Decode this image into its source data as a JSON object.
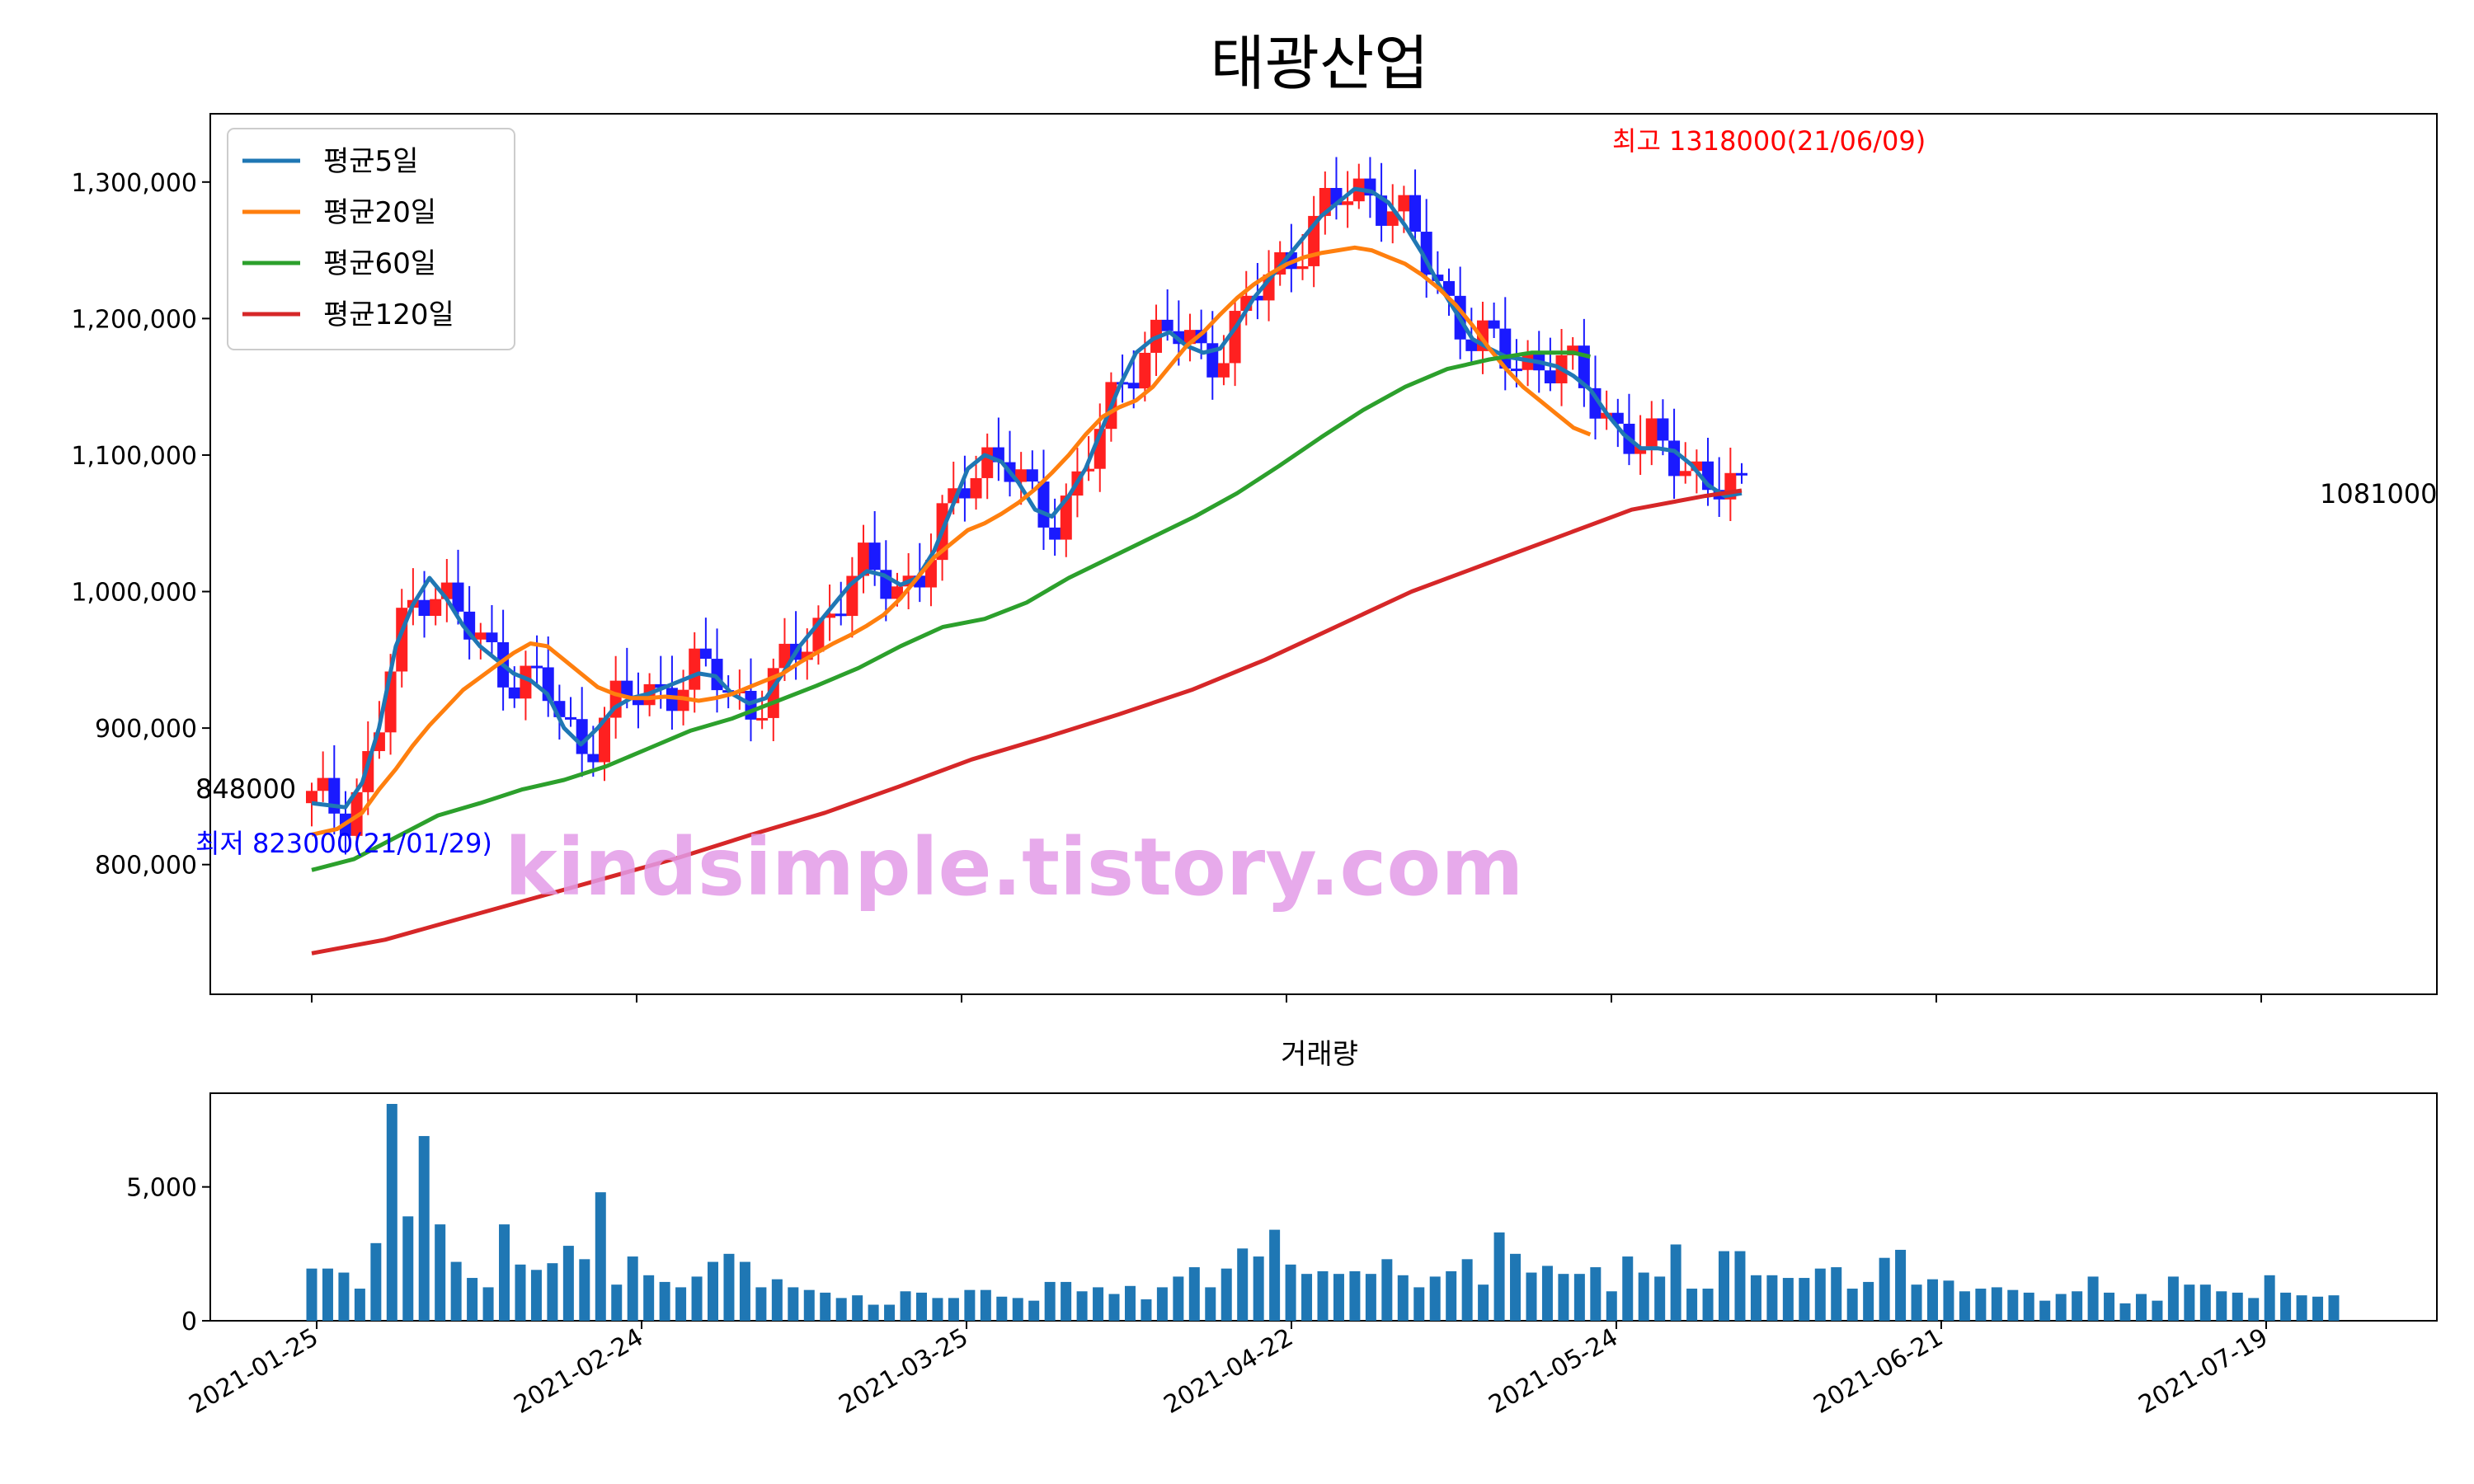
{
  "title": "태광산업",
  "watermark": "kindsimple.tistory.com",
  "colors": {
    "ma5": "#1f77b4",
    "ma20": "#ff7f0e",
    "ma60": "#2ca02c",
    "ma120": "#d62728",
    "up": "#ff2020",
    "down": "#1a1aff",
    "volume": "#1f77b4",
    "watermark": "#e39be8",
    "high_label": "#ff0000",
    "low_label": "#0000ff"
  },
  "chart_data": [
    {
      "type": "candlestick",
      "title": "태광산업",
      "ylim": [
        705000,
        1350000
      ],
      "yticks": [
        800000,
        900000,
        1000000,
        1100000,
        1200000,
        1300000
      ],
      "ytick_labels": [
        "800,000",
        "900,000",
        "1,000,000",
        "1,100,000",
        "1,200,000",
        "1,300,000"
      ],
      "xticks": [
        "2021-01-25",
        "2021-02-24",
        "2021-03-25",
        "2021-04-22",
        "2021-05-24",
        "2021-06-21",
        "2021-07-19"
      ],
      "legend": {
        "position": "top-left",
        "entries": [
          "평균5일",
          "평균20일",
          "평균60일",
          "평균120일"
        ]
      },
      "annotations": {
        "start_close": "848000",
        "last_close": "1081000",
        "high": "최고 1318000(21/06/09)",
        "low": "최저 823000(21/01/29)"
      },
      "series": [
        {
          "name": "평균5일",
          "values": [
            [
              0,
              845000
            ],
            [
              4,
              842000
            ],
            [
              6,
              860000
            ],
            [
              8,
              900000
            ],
            [
              10,
              960000
            ],
            [
              12,
              990000
            ],
            [
              14,
              1010000
            ],
            [
              16,
              995000
            ],
            [
              18,
              975000
            ],
            [
              20,
              960000
            ],
            [
              22,
              950000
            ],
            [
              24,
              940000
            ],
            [
              26,
              935000
            ],
            [
              28,
              925000
            ],
            [
              30,
              900000
            ],
            [
              32,
              888000
            ],
            [
              34,
              900000
            ],
            [
              36,
              915000
            ],
            [
              38,
              922000
            ],
            [
              40,
              925000
            ],
            [
              42,
              930000
            ],
            [
              44,
              935000
            ],
            [
              46,
              940000
            ],
            [
              48,
              938000
            ],
            [
              50,
              925000
            ],
            [
              52,
              918000
            ],
            [
              54,
              922000
            ],
            [
              56,
              940000
            ],
            [
              58,
              960000
            ],
            [
              60,
              975000
            ],
            [
              62,
              990000
            ],
            [
              64,
              1005000
            ],
            [
              66,
              1015000
            ],
            [
              68,
              1012000
            ],
            [
              70,
              1005000
            ],
            [
              72,
              1010000
            ],
            [
              74,
              1030000
            ],
            [
              76,
              1060000
            ],
            [
              78,
              1090000
            ],
            [
              80,
              1100000
            ],
            [
              82,
              1095000
            ],
            [
              84,
              1080000
            ],
            [
              86,
              1060000
            ],
            [
              88,
              1055000
            ],
            [
              90,
              1070000
            ],
            [
              92,
              1090000
            ],
            [
              94,
              1120000
            ],
            [
              96,
              1150000
            ],
            [
              98,
              1175000
            ],
            [
              100,
              1185000
            ],
            [
              102,
              1190000
            ],
            [
              104,
              1180000
            ],
            [
              106,
              1175000
            ],
            [
              108,
              1178000
            ],
            [
              110,
              1195000
            ],
            [
              112,
              1215000
            ],
            [
              114,
              1230000
            ],
            [
              116,
              1245000
            ],
            [
              118,
              1260000
            ],
            [
              120,
              1275000
            ],
            [
              122,
              1285000
            ],
            [
              124,
              1295000
            ],
            [
              126,
              1293000
            ],
            [
              128,
              1285000
            ],
            [
              130,
              1268000
            ],
            [
              132,
              1248000
            ],
            [
              134,
              1225000
            ],
            [
              136,
              1205000
            ],
            [
              138,
              1185000
            ],
            [
              140,
              1178000
            ],
            [
              142,
              1172000
            ],
            [
              144,
              1170000
            ],
            [
              146,
              1168000
            ],
            [
              148,
              1165000
            ],
            [
              150,
              1158000
            ],
            [
              152,
              1148000
            ],
            [
              154,
              1130000
            ],
            [
              156,
              1115000
            ],
            [
              158,
              1105000
            ],
            [
              160,
              1105000
            ],
            [
              162,
              1103000
            ],
            [
              164,
              1093000
            ],
            [
              166,
              1078000
            ],
            [
              168,
              1070000
            ],
            [
              170,
              1072000
            ]
          ]
        },
        {
          "name": "평균20일",
          "values": [
            [
              0,
              822000
            ],
            [
              3,
              826000
            ],
            [
              6,
              838000
            ],
            [
              8,
              855000
            ],
            [
              10,
              870000
            ],
            [
              12,
              887000
            ],
            [
              14,
              902000
            ],
            [
              16,
              915000
            ],
            [
              18,
              928000
            ],
            [
              20,
              937000
            ],
            [
              22,
              946000
            ],
            [
              24,
              955000
            ],
            [
              26,
              962000
            ],
            [
              28,
              960000
            ],
            [
              30,
              950000
            ],
            [
              32,
              940000
            ],
            [
              34,
              930000
            ],
            [
              36,
              925000
            ],
            [
              38,
              922000
            ],
            [
              40,
              922000
            ],
            [
              42,
              923000
            ],
            [
              44,
              922000
            ],
            [
              46,
              920000
            ],
            [
              48,
              922000
            ],
            [
              50,
              925000
            ],
            [
              52,
              930000
            ],
            [
              54,
              935000
            ],
            [
              56,
              940000
            ],
            [
              58,
              948000
            ],
            [
              60,
              955000
            ],
            [
              62,
              962000
            ],
            [
              64,
              968000
            ],
            [
              66,
              975000
            ],
            [
              68,
              983000
            ],
            [
              70,
              995000
            ],
            [
              72,
              1010000
            ],
            [
              74,
              1025000
            ],
            [
              76,
              1035000
            ],
            [
              78,
              1045000
            ],
            [
              80,
              1050000
            ],
            [
              82,
              1057000
            ],
            [
              84,
              1065000
            ],
            [
              86,
              1075000
            ],
            [
              88,
              1087000
            ],
            [
              90,
              1100000
            ],
            [
              92,
              1115000
            ],
            [
              94,
              1128000
            ],
            [
              96,
              1135000
            ],
            [
              98,
              1140000
            ],
            [
              100,
              1150000
            ],
            [
              102,
              1165000
            ],
            [
              104,
              1180000
            ],
            [
              106,
              1190000
            ],
            [
              108,
              1203000
            ],
            [
              110,
              1215000
            ],
            [
              112,
              1225000
            ],
            [
              114,
              1233000
            ],
            [
              116,
              1240000
            ],
            [
              118,
              1245000
            ],
            [
              120,
              1248000
            ],
            [
              122,
              1250000
            ],
            [
              124,
              1252000
            ],
            [
              126,
              1250000
            ],
            [
              128,
              1245000
            ],
            [
              130,
              1240000
            ],
            [
              132,
              1232000
            ],
            [
              134,
              1222000
            ],
            [
              136,
              1210000
            ],
            [
              138,
              1195000
            ],
            [
              140,
              1178000
            ],
            [
              142,
              1163000
            ],
            [
              144,
              1150000
            ],
            [
              146,
              1140000
            ],
            [
              148,
              1130000
            ],
            [
              150,
              1120000
            ],
            [
              152,
              1115000
            ]
          ]
        },
        {
          "name": "평균60일",
          "values": [
            [
              0,
              796000
            ],
            [
              5,
              804000
            ],
            [
              10,
              820000
            ],
            [
              15,
              836000
            ],
            [
              20,
              845000
            ],
            [
              25,
              855000
            ],
            [
              30,
              862000
            ],
            [
              35,
              872000
            ],
            [
              40,
              885000
            ],
            [
              45,
              898000
            ],
            [
              50,
              907000
            ],
            [
              55,
              919000
            ],
            [
              60,
              931000
            ],
            [
              65,
              944000
            ],
            [
              70,
              960000
            ],
            [
              75,
              974000
            ],
            [
              80,
              980000
            ],
            [
              85,
              992000
            ],
            [
              90,
              1010000
            ],
            [
              95,
              1025000
            ],
            [
              100,
              1040000
            ],
            [
              105,
              1055000
            ],
            [
              110,
              1072000
            ],
            [
              115,
              1092000
            ],
            [
              120,
              1113000
            ],
            [
              125,
              1133000
            ],
            [
              130,
              1150000
            ],
            [
              135,
              1163000
            ],
            [
              140,
              1170000
            ],
            [
              145,
              1175000
            ],
            [
              150,
              1175000
            ],
            [
              152,
              1172000
            ]
          ]
        },
        {
          "name": "평균120일",
          "values": [
            [
              0,
              735000
            ],
            [
              10,
              745000
            ],
            [
              20,
              760000
            ],
            [
              30,
              775000
            ],
            [
              40,
              790000
            ],
            [
              50,
              805000
            ],
            [
              60,
              822000
            ],
            [
              70,
              838000
            ],
            [
              80,
              857000
            ],
            [
              90,
              877000
            ],
            [
              100,
              893000
            ],
            [
              110,
              910000
            ],
            [
              120,
              928000
            ],
            [
              130,
              950000
            ],
            [
              140,
              975000
            ],
            [
              150,
              1000000
            ],
            [
              160,
              1020000
            ],
            [
              170,
              1040000
            ],
            [
              180,
              1060000
            ],
            [
              190,
              1070000
            ],
            [
              195,
              1074000
            ]
          ]
        }
      ]
    },
    {
      "type": "bar",
      "title": "거래량",
      "ylim": [
        0,
        8500
      ],
      "yticks": [
        0,
        5000
      ],
      "ytick_labels": [
        "0",
        "5,000"
      ],
      "xticks": [
        "2021-01-25",
        "2021-02-24",
        "2021-03-25",
        "2021-04-22",
        "2021-05-24",
        "2021-06-21",
        "2021-07-19"
      ],
      "values": [
        1950,
        1950,
        1800,
        1200,
        2900,
        8100,
        3900,
        6900,
        3600,
        2200,
        1600,
        1250,
        3600,
        2100,
        1900,
        2150,
        2800,
        2300,
        4800,
        1350,
        2400,
        1700,
        1450,
        1250,
        1650,
        2200,
        2500,
        2200,
        1250,
        1550,
        1250,
        1150,
        1050,
        850,
        950,
        600,
        600,
        1100,
        1050,
        850,
        850,
        1150,
        1150,
        900,
        850,
        750,
        1450,
        1450,
        1100,
        1250,
        1000,
        1300,
        800,
        1250,
        1650,
        2000,
        1250,
        1950,
        2700,
        2400,
        3400,
        2100,
        1750,
        1850,
        1750,
        1850,
        1750,
        2300,
        1700,
        1250,
        1650,
        1850,
        2300,
        1350,
        3300,
        2500,
        1800,
        2050,
        1750,
        1750,
        2000,
        1100,
        2400,
        1800,
        1650,
        2850,
        1200,
        1200,
        2600,
        2600,
        1700,
        1700,
        1600,
        1600,
        1950,
        2000,
        1200,
        1450,
        2350,
        2650,
        1350,
        1550,
        1500,
        1100,
        1200,
        1250,
        1150,
        1050,
        750,
        1000,
        1100,
        1650,
        1050,
        650,
        1000,
        750,
        1650,
        1350,
        1350,
        1100,
        1050,
        850,
        1700,
        1050,
        950,
        900,
        950
      ]
    }
  ]
}
